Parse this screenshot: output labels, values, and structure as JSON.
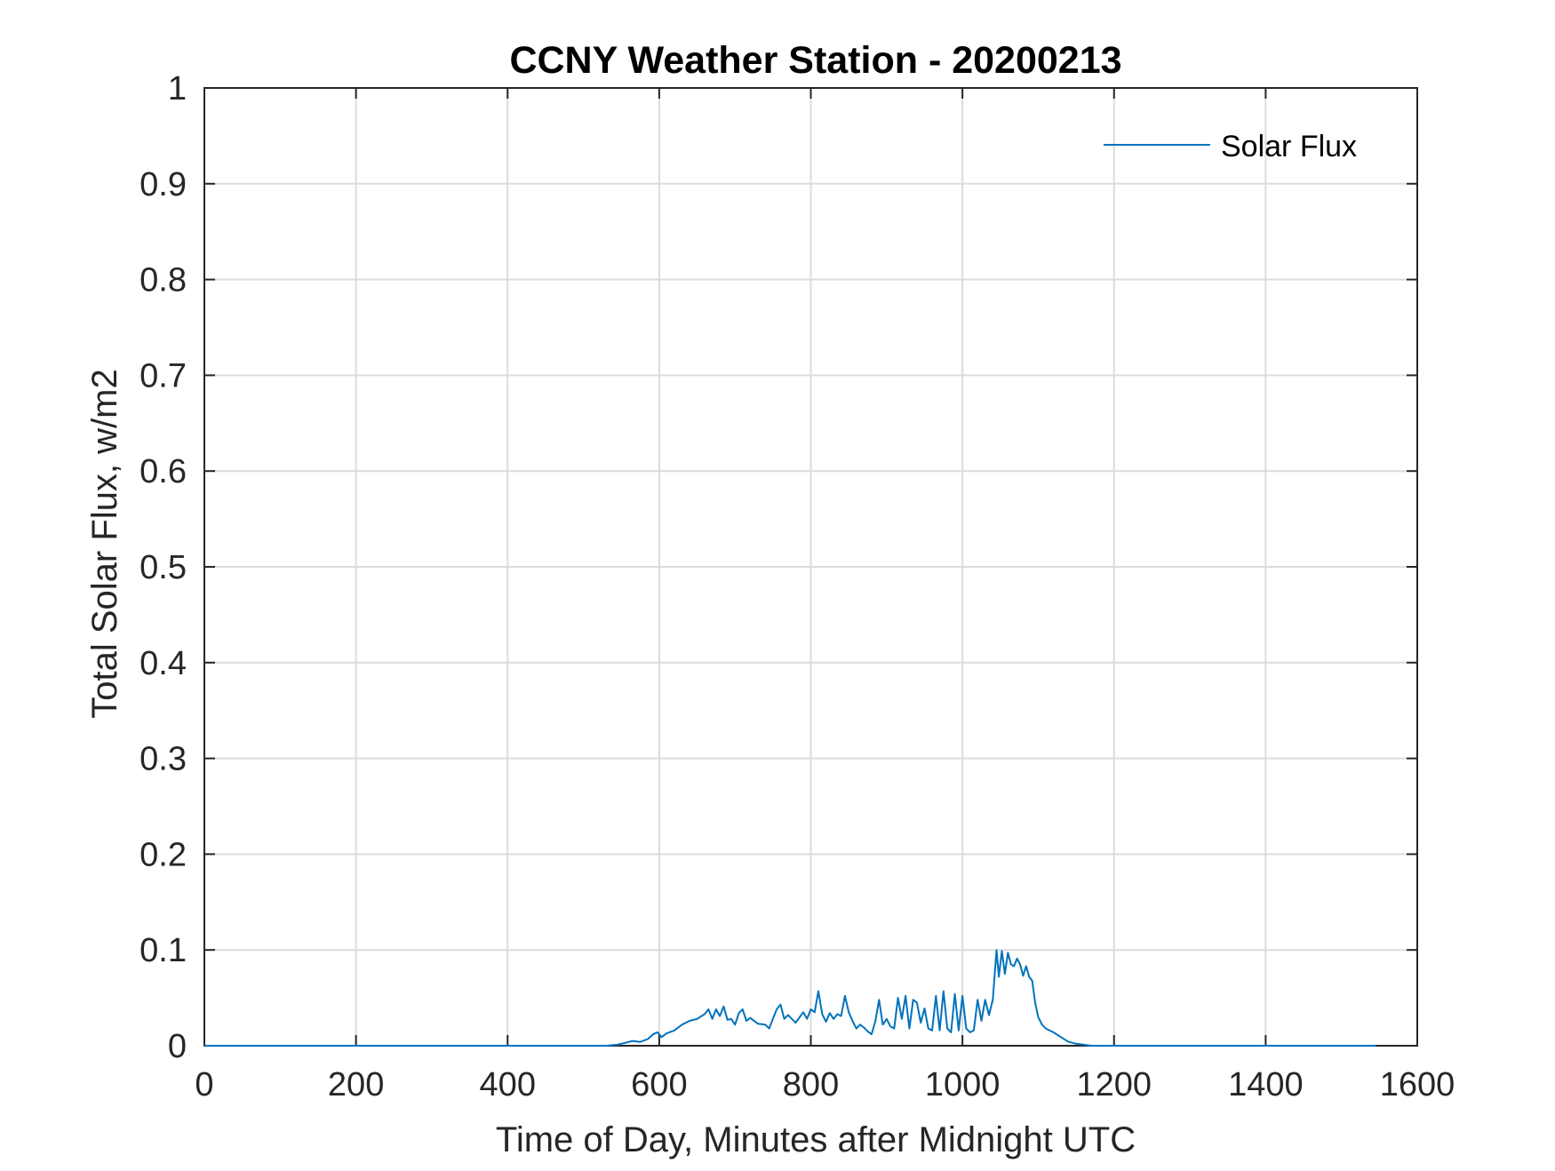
{
  "chart_data": {
    "type": "line",
    "title": "CCNY Weather Station - 20200213",
    "xlabel": "Time of Day, Minutes after Midnight UTC",
    "ylabel": "Total Solar Flux, w/m2",
    "xlim": [
      0,
      1600
    ],
    "ylim": [
      0,
      1
    ],
    "xticks": [
      "0",
      "200",
      "400",
      "600",
      "800",
      "1000",
      "1200",
      "1400",
      "1600"
    ],
    "yticks": [
      "0",
      "0.1",
      "0.2",
      "0.3",
      "0.4",
      "0.5",
      "0.6",
      "0.7",
      "0.8",
      "0.9",
      "1"
    ],
    "grid": true,
    "legend_position": "top-right",
    "series": [
      {
        "name": "Solar Flux",
        "color": "#0072BD",
        "x": [
          0,
          530,
          545,
          555,
          565,
          575,
          585,
          592,
          598,
          603,
          610,
          620,
          630,
          640,
          650,
          660,
          665,
          670,
          675,
          680,
          685,
          690,
          695,
          700,
          705,
          710,
          715,
          720,
          730,
          740,
          745,
          750,
          755,
          760,
          765,
          770,
          780,
          790,
          795,
          800,
          805,
          810,
          815,
          820,
          825,
          830,
          835,
          840,
          845,
          850,
          855,
          860,
          865,
          870,
          875,
          880,
          885,
          890,
          895,
          900,
          905,
          910,
          915,
          920,
          925,
          930,
          935,
          940,
          945,
          950,
          955,
          960,
          965,
          970,
          975,
          980,
          985,
          990,
          995,
          1000,
          1005,
          1010,
          1015,
          1020,
          1025,
          1030,
          1035,
          1040,
          1045,
          1048,
          1052,
          1056,
          1060,
          1064,
          1068,
          1072,
          1076,
          1080,
          1084,
          1088,
          1092,
          1096,
          1100,
          1105,
          1110,
          1115,
          1120,
          1130,
          1140,
          1150,
          1160,
          1170,
          1200,
          1300,
          1400,
          1545
        ],
        "y": [
          0,
          0,
          0.001,
          0.003,
          0.005,
          0.004,
          0.007,
          0.012,
          0.014,
          0.009,
          0.013,
          0.016,
          0.022,
          0.026,
          0.028,
          0.033,
          0.038,
          0.028,
          0.038,
          0.031,
          0.041,
          0.027,
          0.028,
          0.022,
          0.034,
          0.038,
          0.026,
          0.029,
          0.023,
          0.022,
          0.018,
          0.028,
          0.038,
          0.043,
          0.028,
          0.032,
          0.024,
          0.035,
          0.028,
          0.038,
          0.035,
          0.057,
          0.033,
          0.025,
          0.034,
          0.028,
          0.033,
          0.031,
          0.052,
          0.035,
          0.026,
          0.018,
          0.022,
          0.019,
          0.015,
          0.012,
          0.025,
          0.048,
          0.022,
          0.028,
          0.02,
          0.018,
          0.05,
          0.028,
          0.052,
          0.018,
          0.048,
          0.045,
          0.024,
          0.039,
          0.018,
          0.016,
          0.052,
          0.016,
          0.057,
          0.018,
          0.014,
          0.054,
          0.016,
          0.052,
          0.018,
          0.014,
          0.016,
          0.048,
          0.026,
          0.048,
          0.032,
          0.048,
          0.1,
          0.072,
          0.099,
          0.075,
          0.097,
          0.085,
          0.083,
          0.091,
          0.085,
          0.073,
          0.083,
          0.072,
          0.068,
          0.045,
          0.03,
          0.022,
          0.018,
          0.016,
          0.014,
          0.009,
          0.004,
          0.002,
          0.001,
          0,
          0,
          0,
          0,
          0
        ]
      }
    ]
  }
}
